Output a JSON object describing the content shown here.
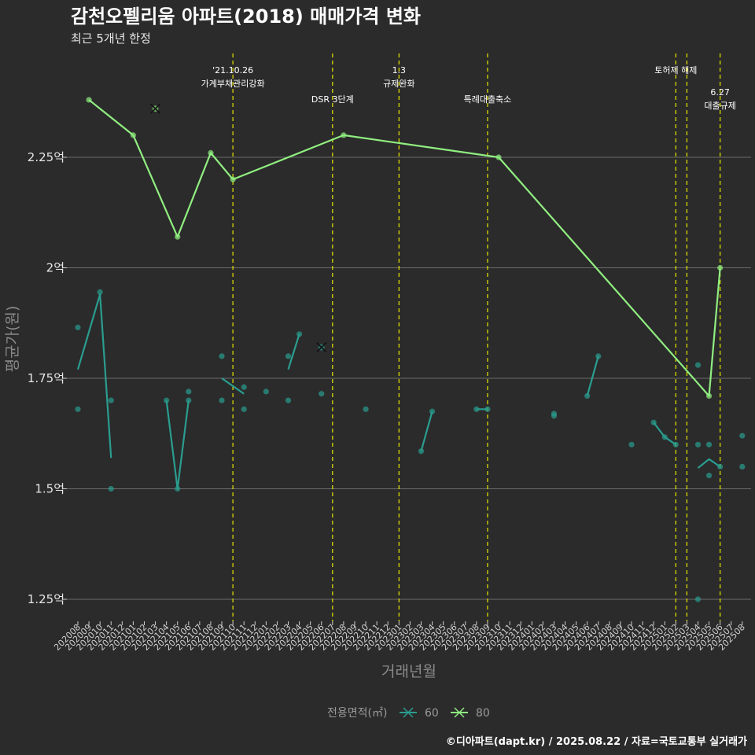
{
  "title": "감천오펠리움 아파트(2018) 매매가격 변화",
  "subtitle": "최근 5개년 한정",
  "caption": "©디아파트(dapt.kr) / 2025.08.22 / 자료=국토교통부 실거래가",
  "colors": {
    "background": "#2b2b2b",
    "grid": "#6b6b6b",
    "event_line": "#e6e600",
    "series_60": "#2a9d8f",
    "series_80": "#90ee80"
  },
  "chart_data": {
    "type": "line",
    "xlabel": "거래년월",
    "ylabel": "평균가(원)",
    "categories": [
      "202008",
      "202009",
      "202010",
      "202011",
      "202012",
      "202101",
      "202102",
      "202103",
      "202104",
      "202105",
      "202106",
      "202107",
      "202108",
      "202109",
      "202110",
      "202111",
      "202112",
      "202201",
      "202202",
      "202203",
      "202204",
      "202205",
      "202206",
      "202207",
      "202208",
      "202209",
      "202210",
      "202211",
      "202212",
      "202301",
      "202302",
      "202303",
      "202304",
      "202305",
      "202306",
      "202307",
      "202308",
      "202309",
      "202310",
      "202311",
      "202312",
      "202401",
      "202402",
      "202403",
      "202404",
      "202405",
      "202406",
      "202407",
      "202408",
      "202409",
      "202410",
      "202411",
      "202412",
      "202501",
      "202502",
      "202503",
      "202504",
      "202505",
      "202506",
      "202507",
      "202508"
    ],
    "ylim": [
      1.2,
      2.5
    ],
    "yticks": [
      {
        "value": 1.25,
        "label": "1.25억"
      },
      {
        "value": 1.5,
        "label": "1.5억"
      },
      {
        "value": 1.75,
        "label": "1.75억"
      },
      {
        "value": 2.0,
        "label": "2억"
      },
      {
        "value": 2.25,
        "label": "2.25억"
      }
    ],
    "grid": true,
    "legend": {
      "title": "전용면적(㎡)",
      "placement": "bottom"
    },
    "series": [
      {
        "name": "60",
        "color": "#2a9d8f",
        "line": [
          {
            "x": "202008",
            "y": 1.77
          },
          {
            "x": "202010",
            "y": 1.94
          },
          {
            "x": "202011",
            "y": 1.57
          },
          {
            "x": null
          },
          {
            "x": "202104",
            "y": 1.7
          },
          {
            "x": "202105",
            "y": 1.5
          },
          {
            "x": "202106",
            "y": 1.7
          },
          {
            "x": null
          },
          {
            "x": "202109",
            "y": 1.75
          },
          {
            "x": "202111",
            "y": 1.715
          },
          {
            "x": null
          },
          {
            "x": "202203",
            "y": 1.77
          },
          {
            "x": "202204",
            "y": 1.85
          },
          {
            "x": null
          },
          {
            "x": "202303",
            "y": 1.585
          },
          {
            "x": "202304",
            "y": 1.675
          },
          {
            "x": null
          },
          {
            "x": "202308",
            "y": 1.68
          },
          {
            "x": "202309",
            "y": 1.68
          },
          {
            "x": null
          },
          {
            "x": "202406",
            "y": 1.71
          },
          {
            "x": "202407",
            "y": 1.8
          },
          {
            "x": null
          },
          {
            "x": "202412",
            "y": 1.65
          },
          {
            "x": "202501",
            "y": 1.617
          },
          {
            "x": "202502",
            "y": 1.6
          },
          {
            "x": null
          },
          {
            "x": "202504",
            "y": 1.547
          },
          {
            "x": "202505",
            "y": 1.567
          },
          {
            "x": "202506",
            "y": 1.55
          }
        ],
        "points": [
          {
            "x": "202008",
            "y": 1.865
          },
          {
            "x": "202008",
            "y": 1.68
          },
          {
            "x": "202010",
            "y": 1.945
          },
          {
            "x": "202011",
            "y": 1.7
          },
          {
            "x": "202011",
            "y": 1.5
          },
          {
            "x": "202104",
            "y": 1.7
          },
          {
            "x": "202105",
            "y": 1.5
          },
          {
            "x": "202106",
            "y": 1.72
          },
          {
            "x": "202106",
            "y": 1.7
          },
          {
            "x": "202109",
            "y": 1.8
          },
          {
            "x": "202109",
            "y": 1.7
          },
          {
            "x": "202111",
            "y": 1.73
          },
          {
            "x": "202111",
            "y": 1.68
          },
          {
            "x": "202201",
            "y": 1.72
          },
          {
            "x": "202203",
            "y": 1.8
          },
          {
            "x": "202203",
            "y": 1.7
          },
          {
            "x": "202204",
            "y": 1.85
          },
          {
            "x": "202206",
            "y": 1.715
          },
          {
            "x": "202210",
            "y": 1.68
          },
          {
            "x": "202303",
            "y": 1.585
          },
          {
            "x": "202304",
            "y": 1.675
          },
          {
            "x": "202308",
            "y": 1.68
          },
          {
            "x": "202309",
            "y": 1.68
          },
          {
            "x": "202403",
            "y": 1.67
          },
          {
            "x": "202403",
            "y": 1.665
          },
          {
            "x": "202406",
            "y": 1.71
          },
          {
            "x": "202407",
            "y": 1.8
          },
          {
            "x": "202410",
            "y": 1.6
          },
          {
            "x": "202412",
            "y": 1.65
          },
          {
            "x": "202501",
            "y": 1.617
          },
          {
            "x": "202502",
            "y": 1.6
          },
          {
            "x": "202504",
            "y": 1.78
          },
          {
            "x": "202504",
            "y": 1.6
          },
          {
            "x": "202504",
            "y": 1.25
          },
          {
            "x": "202505",
            "y": 1.6
          },
          {
            "x": "202505",
            "y": 1.53
          },
          {
            "x": "202506",
            "y": 1.55
          },
          {
            "x": "202508",
            "y": 1.62
          },
          {
            "x": "202508",
            "y": 1.55
          }
        ],
        "cross_marks": [
          {
            "x": "202206",
            "y": 1.82
          }
        ]
      },
      {
        "name": "80",
        "color": "#90ee80",
        "line": [
          {
            "x": "202009",
            "y": 2.38
          },
          {
            "x": "202101",
            "y": 2.3
          },
          {
            "x": "202105",
            "y": 2.07
          },
          {
            "x": "202108",
            "y": 2.26
          },
          {
            "x": "202110",
            "y": 2.2
          },
          {
            "x": "202208",
            "y": 2.3
          },
          {
            "x": "202310",
            "y": 2.25
          },
          {
            "x": "202505",
            "y": 1.71
          },
          {
            "x": "202506",
            "y": 2.0
          }
        ],
        "points": [
          {
            "x": "202009",
            "y": 2.38
          },
          {
            "x": "202101",
            "y": 2.3
          },
          {
            "x": "202105",
            "y": 2.07
          },
          {
            "x": "202108",
            "y": 2.26
          },
          {
            "x": "202110",
            "y": 2.2
          },
          {
            "x": "202208",
            "y": 2.3
          },
          {
            "x": "202310",
            "y": 2.25
          },
          {
            "x": "202505",
            "y": 1.71
          },
          {
            "x": "202506",
            "y": 2.0
          }
        ],
        "cross_marks": [
          {
            "x": "202103",
            "y": 2.36
          }
        ]
      }
    ],
    "events": [
      {
        "x": "202110",
        "lines": [
          "'21.10.26",
          "가계부채관리강화"
        ],
        "row": 0
      },
      {
        "x": "202207",
        "lines": [
          "DSR 3단계"
        ],
        "row": 1
      },
      {
        "x": "202301",
        "lines": [
          "1.3",
          "규제완화"
        ],
        "row": 0
      },
      {
        "x": "202309",
        "lines": [
          "특례대출축소"
        ],
        "row": 1
      },
      {
        "x": "202502",
        "lines": [
          "토허제 해제"
        ],
        "row": 0
      },
      {
        "x": "202503",
        "lines": [],
        "row": 0
      },
      {
        "x": "202506",
        "lines": [
          "6.27",
          "대출규제"
        ],
        "row": 2
      }
    ]
  }
}
